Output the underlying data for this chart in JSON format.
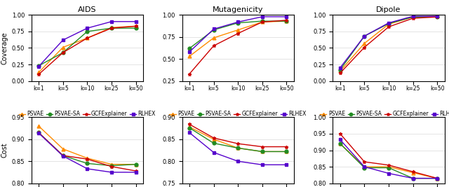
{
  "x_labels": [
    "k=1",
    "k=5",
    "k=10",
    "k=25",
    "k=50"
  ],
  "x_vals": [
    0,
    1,
    2,
    3,
    4
  ],
  "coverage": {
    "AIDS": {
      "PSVAE": [
        0.13,
        0.51,
        0.65,
        0.81,
        0.83
      ],
      "PSVAE-SA": [
        0.23,
        0.43,
        0.75,
        0.8,
        0.8
      ],
      "GCFExplainer": [
        0.1,
        0.43,
        0.65,
        0.8,
        0.83
      ],
      "RLHEX": [
        0.22,
        0.62,
        0.8,
        0.9,
        0.9
      ]
    },
    "Mutagenicity": {
      "PSVAE": [
        0.53,
        0.74,
        0.83,
        0.92,
        0.93
      ],
      "PSVAE-SA": [
        0.62,
        0.83,
        0.91,
        0.93,
        0.93
      ],
      "GCFExplainer": [
        0.33,
        0.65,
        0.79,
        0.92,
        0.94
      ],
      "RLHEX": [
        0.58,
        0.84,
        0.92,
        0.98,
        0.98
      ]
    },
    "Dipole": {
      "PSVAE": [
        0.15,
        0.57,
        0.86,
        0.97,
        0.98
      ],
      "PSVAE-SA": [
        0.17,
        0.68,
        0.87,
        0.97,
        0.97
      ],
      "GCFExplainer": [
        0.12,
        0.51,
        0.82,
        0.95,
        0.97
      ],
      "RLHEX": [
        0.2,
        0.68,
        0.88,
        0.98,
        0.98
      ]
    }
  },
  "cost": {
    "AIDS": {
      "PSVAE": [
        0.93,
        0.878,
        0.857,
        0.843,
        0.843
      ],
      "PSVAE-SA": [
        0.915,
        0.863,
        0.845,
        0.84,
        0.843
      ],
      "GCFExplainer": [
        0.915,
        0.863,
        0.855,
        0.838,
        0.828
      ],
      "RLHEX": [
        0.914,
        0.862,
        0.833,
        0.825,
        0.825
      ]
    },
    "Mutagenicity": {
      "PSVAE": [
        0.878,
        0.85,
        0.83,
        0.822,
        0.822
      ],
      "PSVAE-SA": [
        0.876,
        0.841,
        0.83,
        0.822,
        0.822
      ],
      "GCFExplainer": [
        0.884,
        0.853,
        0.84,
        0.833,
        0.833
      ],
      "RLHEX": [
        0.865,
        0.82,
        0.8,
        0.792,
        0.792
      ]
    },
    "Dipole": {
      "PSVAE": [
        0.92,
        0.85,
        0.85,
        0.832,
        0.815
      ],
      "PSVAE-SA": [
        0.92,
        0.847,
        0.847,
        0.815,
        0.815
      ],
      "GCFExplainer": [
        0.95,
        0.865,
        0.855,
        0.835,
        0.815
      ],
      "RLHEX": [
        0.932,
        0.85,
        0.83,
        0.815,
        0.815
      ]
    }
  },
  "series_colors": {
    "PSVAE": "#FF8C00",
    "PSVAE-SA": "#228B22",
    "GCFExplainer": "#CC0000",
    "RLHEX": "#5500CC"
  },
  "series_markers": {
    "PSVAE": "^",
    "PSVAE-SA": "o",
    "GCFExplainer": "*",
    "RLHEX": "s"
  },
  "datasets": [
    "AIDS",
    "Mutagenicity",
    "Dipole"
  ],
  "series": [
    "PSVAE",
    "PSVAE-SA",
    "GCFExplainer",
    "RLHEX"
  ],
  "coverage_ylims": {
    "AIDS": [
      0.0,
      1.0
    ],
    "Mutagenicity": [
      0.25,
      1.0
    ],
    "Dipole": [
      0.0,
      1.0
    ]
  },
  "coverage_yticks": {
    "AIDS": [
      0.0,
      0.25,
      0.5,
      0.75,
      1.0
    ],
    "Mutagenicity": [
      0.25,
      0.5,
      0.75,
      1.0
    ],
    "Dipole": [
      0.0,
      0.25,
      0.5,
      0.75,
      1.0
    ]
  },
  "cost_ylims": {
    "AIDS": [
      0.8,
      0.95
    ],
    "Mutagenicity": [
      0.75,
      0.9
    ],
    "Dipole": [
      0.8,
      1.0
    ]
  },
  "cost_yticks": {
    "AIDS": [
      0.8,
      0.85,
      0.9,
      0.95
    ],
    "Mutagenicity": [
      0.75,
      0.8,
      0.85,
      0.9
    ],
    "Dipole": [
      0.8,
      0.85,
      0.9,
      0.95,
      1.0
    ]
  },
  "coverage_ylabel": "Coverage",
  "cost_ylabel": "Cost",
  "figsize": [
    6.4,
    2.67
  ],
  "dpi": 100
}
